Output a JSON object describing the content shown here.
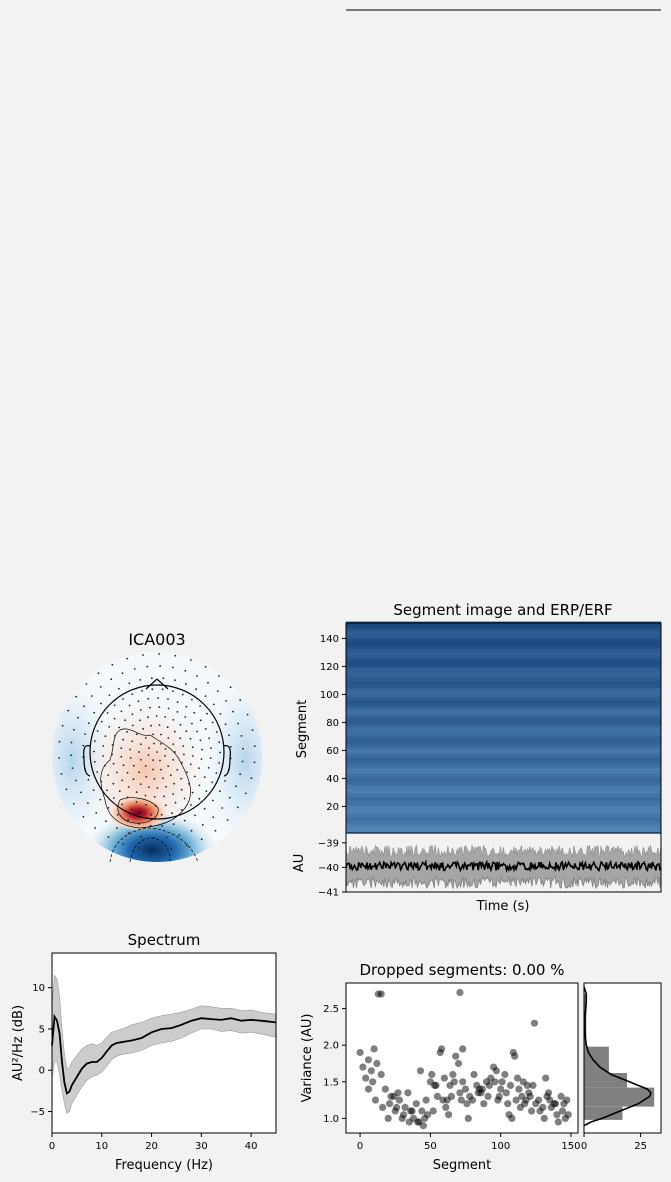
{
  "figure": {
    "background": "#f2f2f2"
  },
  "topomap": {
    "title": "ICA003",
    "colors": {
      "positive": "#b2182b",
      "negative": "#2166ac",
      "neutral": "#ffffff"
    }
  },
  "chart_data": [
    {
      "type": "heatmap",
      "id": "segment-image",
      "title": "Segment image and ERP/ERF",
      "ylabel": "Segment",
      "ylim": [
        1,
        151
      ],
      "yticks": [
        20,
        40,
        60,
        80,
        100,
        120,
        140
      ],
      "rows": 151,
      "colormap": "Blues",
      "tick_labels": [
        "20",
        "40",
        "60",
        "80",
        "100",
        "120",
        "140"
      ]
    },
    {
      "type": "line",
      "id": "erp",
      "xlabel": "Time (s)",
      "ylabel": "AU",
      "ylim": [
        -41,
        -38.6
      ],
      "yticks": [
        -41,
        -40,
        -39
      ],
      "tick_labels": [
        "−41",
        "−40",
        "−39"
      ],
      "mean_level": -39.95,
      "band_upper": -39.35,
      "band_lower": -40.6,
      "colors": {
        "line": "#000000",
        "band": "#a6a6a6"
      }
    },
    {
      "type": "line",
      "id": "spectrum",
      "title": "Spectrum",
      "xlabel": "Frequency (Hz)",
      "ylabel": "AU²/Hz (dB)",
      "xlim": [
        0,
        45
      ],
      "ylim": [
        -7.6,
        14.2
      ],
      "xticks": [
        0,
        10,
        20,
        30,
        40
      ],
      "yticks": [
        -5,
        0,
        5,
        10
      ],
      "xtick_labels": [
        "0",
        "10",
        "20",
        "30",
        "40"
      ],
      "ytick_labels": [
        "−5",
        "0",
        "5",
        "10"
      ],
      "x": [
        0,
        0.5,
        1,
        1.5,
        2,
        2.5,
        3,
        3.5,
        4,
        5,
        6,
        7,
        8,
        9,
        10,
        11,
        12,
        13,
        14,
        15,
        16,
        18,
        20,
        22,
        24,
        26,
        28,
        30,
        32,
        34,
        36,
        38,
        40,
        42,
        45
      ],
      "mean": [
        3.0,
        6.5,
        6.0,
        4.5,
        1.0,
        -1.5,
        -2.8,
        -2.6,
        -1.8,
        -0.8,
        0.2,
        0.8,
        1.0,
        1.0,
        1.5,
        2.3,
        3.0,
        3.3,
        3.4,
        3.5,
        3.6,
        3.9,
        4.6,
        5.0,
        5.1,
        5.5,
        6.0,
        6.3,
        6.2,
        6.1,
        6.3,
        6.0,
        6.1,
        6.0,
        5.8
      ],
      "upper": [
        8.0,
        11.5,
        11.0,
        9.0,
        5.0,
        2.0,
        0.2,
        0.3,
        1.0,
        1.8,
        2.6,
        3.0,
        3.2,
        3.0,
        3.3,
        4.0,
        4.6,
        4.8,
        5.0,
        5.2,
        5.5,
        5.8,
        6.3,
        6.6,
        6.8,
        7.0,
        7.4,
        7.8,
        7.7,
        7.5,
        7.5,
        7.2,
        7.3,
        7.0,
        6.8
      ],
      "lower": [
        -1.0,
        1.0,
        1.0,
        -0.5,
        -2.5,
        -4.0,
        -5.2,
        -5.0,
        -4.0,
        -3.0,
        -2.0,
        -1.2,
        -0.8,
        -0.6,
        -0.2,
        0.5,
        1.3,
        1.7,
        1.9,
        2.0,
        2.1,
        2.4,
        3.0,
        3.3,
        3.5,
        3.9,
        4.5,
        5.0,
        5.0,
        4.7,
        4.8,
        4.5,
        4.6,
        4.4,
        4.0
      ],
      "colors": {
        "line": "#000000",
        "band": "#cccccc"
      }
    },
    {
      "type": "scatter",
      "id": "dropped-segments",
      "title": "Dropped segments: 0.00 %",
      "xlabel": "Segment",
      "ylabel": "Variance (AU)",
      "xlim": [
        -10,
        155
      ],
      "ylim": [
        0.8,
        2.85
      ],
      "xticks": [
        0,
        50,
        100,
        150
      ],
      "yticks": [
        1.0,
        1.5,
        2.0,
        2.5
      ],
      "xtick_labels": [
        "0",
        "50",
        "100",
        "150"
      ],
      "ytick_labels": [
        "1.0",
        "1.5",
        "2.0",
        "2.5"
      ],
      "x": [
        0,
        2,
        4,
        6,
        8,
        9,
        10,
        11,
        13,
        15,
        16,
        18,
        20,
        21,
        22,
        24,
        25,
        27,
        28,
        30,
        31,
        32,
        34,
        35,
        37,
        38,
        40,
        41,
        43,
        44,
        45,
        47,
        48,
        50,
        51,
        52,
        54,
        55,
        57,
        58,
        60,
        61,
        62,
        63,
        64,
        65,
        66,
        68,
        70,
        71,
        72,
        73,
        75,
        77,
        78,
        80,
        81,
        83,
        85,
        86,
        88,
        90,
        91,
        93,
        95,
        97,
        98,
        100,
        101,
        103,
        104,
        105,
        107,
        109,
        110,
        111,
        112,
        113,
        114,
        115,
        116,
        117,
        118,
        119,
        120,
        122,
        124,
        125,
        127,
        128,
        130,
        131,
        133,
        135,
        136,
        138,
        140,
        141,
        143,
        144,
        145,
        147,
        148,
        15,
        71,
        46,
        73,
        26,
        53,
        87,
        96,
        108,
        121,
        132,
        139,
        6,
        12,
        36,
        42,
        59,
        67,
        76,
        84,
        92,
        99,
        106,
        123,
        134,
        146
      ],
      "y": [
        1.9,
        1.7,
        1.55,
        1.8,
        1.65,
        1.5,
        1.95,
        1.25,
        2.7,
        1.6,
        1.15,
        1.4,
        1.0,
        1.2,
        1.3,
        1.3,
        1.1,
        1.35,
        1.25,
        1.0,
        1.05,
        1.15,
        1.35,
        0.95,
        1.1,
        1.0,
        1.2,
        0.95,
        1.65,
        1.1,
        0.9,
        1.25,
        1.05,
        1.5,
        1.6,
        1.1,
        1.45,
        1.3,
        1.9,
        1.95,
        1.55,
        1.15,
        1.25,
        1.05,
        1.45,
        1.3,
        1.6,
        1.85,
        1.75,
        1.35,
        1.25,
        1.5,
        1.4,
        1.0,
        1.3,
        1.25,
        1.6,
        1.45,
        1.4,
        1.35,
        1.2,
        1.5,
        1.3,
        1.55,
        1.7,
        1.65,
        1.25,
        1.4,
        1.5,
        1.6,
        1.35,
        1.2,
        1.45,
        1.9,
        1.85,
        1.25,
        1.55,
        1.4,
        1.15,
        1.3,
        1.5,
        1.2,
        1.25,
        1.45,
        1.35,
        1.1,
        2.3,
        1.2,
        1.25,
        1.1,
        1.15,
        1.0,
        1.3,
        1.25,
        1.15,
        1.2,
        1.05,
        0.95,
        1.3,
        1.1,
        1.2,
        1.25,
        1.05,
        2.7,
        2.72,
        1.0,
        1.95,
        1.15,
        1.45,
        1.4,
        1.5,
        1.0,
        1.3,
        1.55,
        1.2,
        1.4,
        1.75,
        1.1,
        0.95,
        1.25,
        1.5,
        1.2,
        1.35,
        1.45,
        1.3,
        1.05,
        1.45,
        1.35,
        1.0
      ],
      "colors": {
        "marker": "#000000"
      }
    },
    {
      "type": "histogram",
      "id": "variance-histogram",
      "orientation": "horizontal",
      "xlim": [
        0,
        34
      ],
      "xticks": [
        0,
        25
      ],
      "xtick_labels": [
        "0",
        "25"
      ],
      "bins": [
        {
          "from": 0.98,
          "to": 1.16,
          "count": 17
        },
        {
          "from": 1.16,
          "to": 1.42,
          "count": 31
        },
        {
          "from": 1.42,
          "to": 1.62,
          "count": 19
        },
        {
          "from": 1.62,
          "to": 1.98,
          "count": 11
        },
        {
          "from": 1.98,
          "to": 2.7,
          "count": 1
        }
      ],
      "kde_y": [
        0.9,
        0.95,
        1.0,
        1.1,
        1.2,
        1.3,
        1.35,
        1.4,
        1.5,
        1.6,
        1.7,
        1.8,
        1.9,
        2.0,
        2.1,
        2.2,
        2.3,
        2.4,
        2.5,
        2.6,
        2.7,
        2.75,
        2.8
      ],
      "kde_x": [
        0,
        3,
        8,
        16,
        24,
        29,
        29.5,
        28,
        20,
        12,
        7,
        4,
        2,
        1,
        0.6,
        0.5,
        0.4,
        0.5,
        0.8,
        1,
        1,
        0.5,
        0
      ],
      "colors": {
        "bar": "#808080",
        "line": "#000000"
      }
    }
  ]
}
